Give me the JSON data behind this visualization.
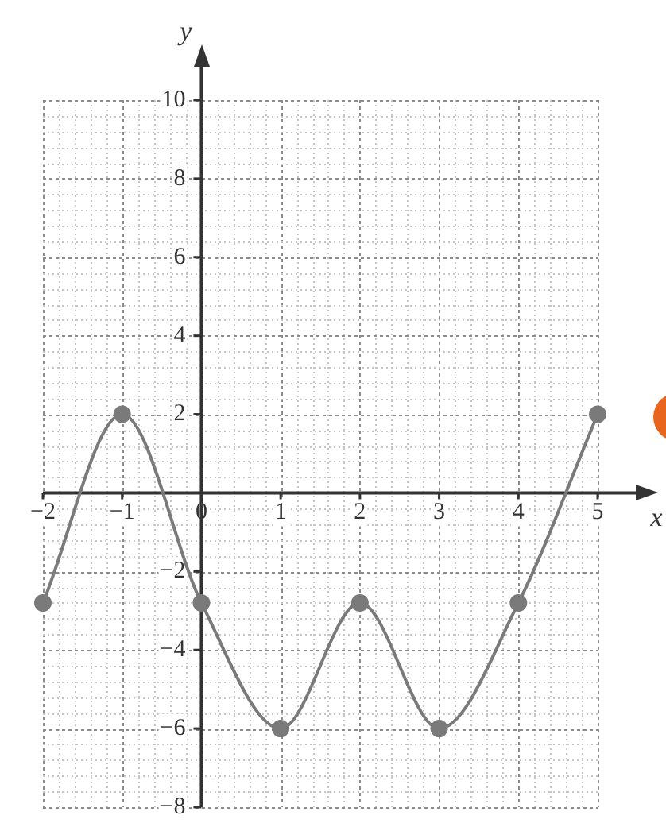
{
  "chart_data": {
    "type": "line",
    "x": [
      -2,
      -1,
      0,
      1,
      2,
      3,
      4,
      5
    ],
    "values": [
      -2.8,
      2,
      -2.8,
      -6,
      -2.8,
      -6,
      -2.8,
      2
    ],
    "color": "#7a7a7a",
    "xlabel": "x",
    "ylabel": "y",
    "xlim": [
      -2,
      5
    ],
    "ylim": [
      -8,
      10
    ],
    "xticks": [
      {
        "value": -2,
        "label": "−2"
      },
      {
        "value": -1,
        "label": "−1"
      },
      0,
      1,
      2,
      3,
      4,
      5
    ],
    "yticks": [
      {
        "value": -8,
        "label": "−8"
      },
      {
        "value": -6,
        "label": "−6"
      },
      {
        "value": -4,
        "label": "−4"
      },
      {
        "value": -2,
        "label": "−2"
      },
      {
        "value": 0,
        "label": null
      },
      2,
      4,
      6,
      8,
      10
    ],
    "grid": true,
    "marker": "circle",
    "line_style": "solid"
  }
}
